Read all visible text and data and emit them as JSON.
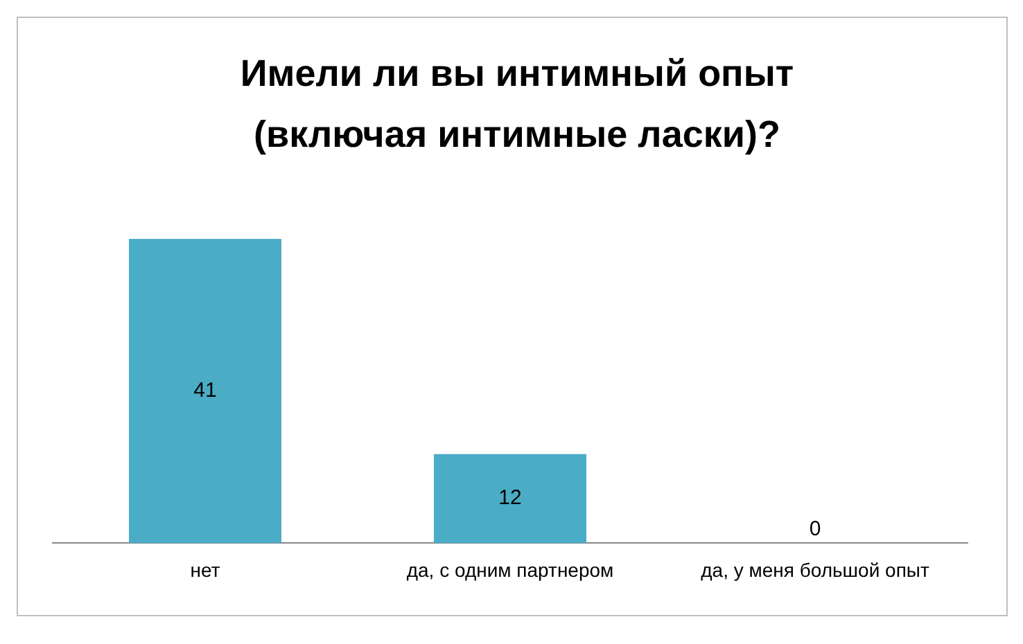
{
  "chart_data": {
    "type": "bar",
    "title": "Имели ли вы интимный опыт (включая интимные ласки)?",
    "categories": [
      "нет",
      "да, с одним партнером",
      "да, у меня большой опыт"
    ],
    "values": [
      41,
      12,
      0
    ],
    "color": "#4bacc6",
    "data_labels": true,
    "grid": false,
    "legend": false,
    "tick_labels": "x"
  }
}
